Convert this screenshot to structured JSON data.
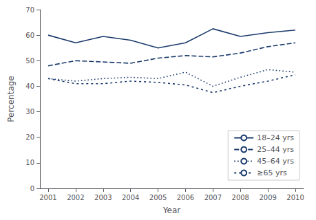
{
  "chart_data": {
    "type": "line",
    "xlabel": "Year",
    "ylabel": "Percentage",
    "x": [
      2001,
      2002,
      2003,
      2004,
      2005,
      2006,
      2007,
      2008,
      2009,
      2010
    ],
    "series": [
      {
        "name": "18–24 yrs",
        "color": "#1a3a6b",
        "line_style": "solid",
        "values": [
          60,
          57,
          59.5,
          58,
          55,
          57,
          62.5,
          59.5,
          61,
          62
        ]
      },
      {
        "name": "25–44 yrs",
        "color": "#1a3a6b",
        "line_style": "long_dash",
        "values": [
          48,
          50,
          49.5,
          49,
          51,
          52,
          51.5,
          53,
          55.5,
          57
        ]
      },
      {
        "name": "45–64 yrs",
        "color": "#1a3a6b",
        "line_style": "dotted",
        "values": [
          43,
          42,
          43,
          43.5,
          43,
          45.5,
          40,
          43.5,
          46.5,
          45.5
        ]
      },
      {
        "name": "≥65 yrs",
        "color": "#1a3a6b",
        "line_style": "short_dash",
        "values": [
          43,
          41,
          41,
          42,
          41.5,
          40.5,
          37.5,
          40,
          42,
          44.5
        ]
      }
    ],
    "xlim": [
      2000.7,
      2010.3
    ],
    "xticks": [
      2001,
      2002,
      2003,
      2004,
      2005,
      2006,
      2007,
      2008,
      2009,
      2010
    ],
    "ylim": [
      0,
      70
    ],
    "yticks": [
      0,
      10,
      20,
      30,
      40,
      50,
      60,
      70
    ],
    "grid": false,
    "legend": "lower right"
  }
}
